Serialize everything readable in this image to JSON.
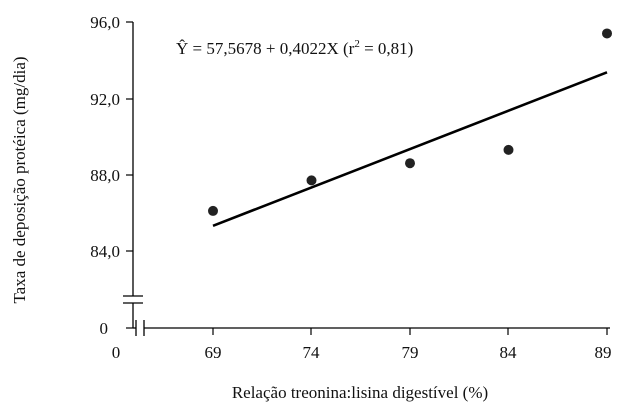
{
  "chart_data": {
    "type": "scatter",
    "title": "",
    "xlabel": "Relação treonina:lisina digestível (%)",
    "ylabel": "Taxa de deposição protéica (mg/dia)",
    "equation": {
      "yhat": "Ŷ",
      "main": " = 57,5678 + 0,4022X (r",
      "sup": "2",
      "tail": " = 0,81)"
    },
    "x_ticks": [
      "0",
      "69",
      "74",
      "79",
      "84",
      "89"
    ],
    "y_ticks": [
      "0",
      "84,0",
      "88,0",
      "92,0",
      "96,0"
    ],
    "xlim": [
      69,
      89
    ],
    "ylim": [
      84.0,
      96.0
    ],
    "axis_break": {
      "x": true,
      "y": true
    },
    "grid": false,
    "legend": "none",
    "colors": {
      "points": "#222222",
      "line": "#000000",
      "axes": "#000000"
    },
    "series": [
      {
        "x": [
          69,
          74,
          79,
          84,
          89
        ],
        "y": [
          86.1,
          87.7,
          88.6,
          89.3,
          95.4
        ]
      }
    ],
    "regression": {
      "intercept": 57.5678,
      "slope": 0.4022,
      "x": [
        69,
        89
      ]
    }
  }
}
